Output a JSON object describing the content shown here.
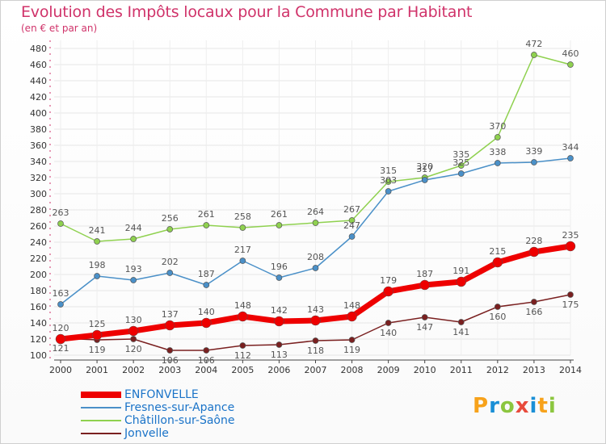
{
  "chart_data": {
    "type": "line",
    "title": "Evolution des Impôts locaux pour la Commune par Habitant",
    "subtitle": "(en € et par an)",
    "categories": [
      "2000",
      "2001",
      "2002",
      "2003",
      "2004",
      "2005",
      "2006",
      "2007",
      "2008",
      "2009",
      "2010",
      "2011",
      "2012",
      "2013",
      "2014"
    ],
    "ylim": [
      100,
      480
    ],
    "yticks": [
      100,
      120,
      140,
      160,
      180,
      200,
      220,
      240,
      260,
      280,
      300,
      320,
      340,
      360,
      380,
      400,
      420,
      440,
      460,
      480
    ],
    "series": [
      {
        "name": "Châtillon-sur-Saône",
        "color": "#8fd14f",
        "values": [
          263,
          241,
          244,
          256,
          261,
          258,
          261,
          264,
          267,
          315,
          320,
          335,
          370,
          472,
          460
        ]
      },
      {
        "name": "Fresnes-sur-Apance",
        "color": "#4a90c8",
        "values": [
          163,
          198,
          193,
          202,
          187,
          217,
          196,
          208,
          247,
          303,
          317,
          325,
          338,
          339,
          344
        ]
      },
      {
        "name": "Jonvelle",
        "color": "#7a2020",
        "values": [
          121,
          119,
          120,
          106,
          106,
          112,
          113,
          118,
          119,
          140,
          147,
          141,
          160,
          166,
          175
        ]
      },
      {
        "name": "ENFONVELLE",
        "color": "#ee0000",
        "values": [
          120,
          125,
          130,
          137,
          140,
          148,
          142,
          143,
          148,
          179,
          187,
          191,
          215,
          228,
          235
        ]
      }
    ],
    "legend": [
      {
        "name": "ENFONVELLE",
        "color": "#ee0000"
      },
      {
        "name": "Fresnes-sur-Apance",
        "color": "#4a90c8"
      },
      {
        "name": "Châtillon-sur-Saône",
        "color": "#8fd14f"
      },
      {
        "name": "Jonvelle",
        "color": "#7a2020"
      }
    ]
  },
  "logo": {
    "text": "Proxiti"
  }
}
